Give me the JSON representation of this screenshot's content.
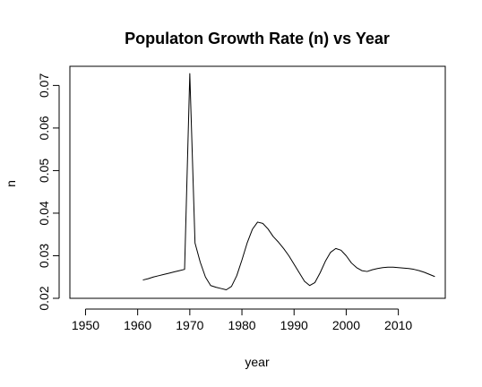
{
  "chart_data": {
    "type": "line",
    "title": "Populaton Growth Rate (n) vs Year",
    "xlabel": "year",
    "ylabel": "n",
    "xlim": [
      1947,
      2019
    ],
    "ylim": [
      0.02,
      0.0745
    ],
    "x_ticks": [
      1950,
      1960,
      1970,
      1980,
      1990,
      2000,
      2010
    ],
    "y_ticks": [
      0.02,
      0.03,
      0.04,
      0.05,
      0.06,
      0.07
    ],
    "x_tick_labels": [
      "1950",
      "1960",
      "1970",
      "1980",
      "1990",
      "2000",
      "2010"
    ],
    "y_tick_labels": [
      "0.02",
      "0.03",
      "0.04",
      "0.05",
      "0.06",
      "0.07"
    ],
    "grid": false,
    "series": [
      {
        "color": "#000000",
        "x": [
          1961,
          1962,
          1963,
          1964,
          1965,
          1966,
          1967,
          1968,
          1969,
          1970,
          1971,
          1972,
          1973,
          1974,
          1975,
          1976,
          1977,
          1978,
          1979,
          1980,
          1981,
          1982,
          1983,
          1984,
          1985,
          1986,
          1987,
          1988,
          1989,
          1990,
          1991,
          1992,
          1993,
          1994,
          1995,
          1996,
          1997,
          1998,
          1999,
          2000,
          2001,
          2002,
          2003,
          2004,
          2005,
          2006,
          2007,
          2008,
          2009,
          2010,
          2011,
          2012,
          2013,
          2014,
          2015,
          2016,
          2017
        ],
        "y": [
          0.0243,
          0.0246,
          0.025,
          0.0253,
          0.0256,
          0.0259,
          0.0262,
          0.0265,
          0.0268,
          0.0728,
          0.033,
          0.0285,
          0.025,
          0.023,
          0.0226,
          0.0223,
          0.022,
          0.0228,
          0.0253,
          0.029,
          0.033,
          0.0362,
          0.0379,
          0.0376,
          0.0363,
          0.0345,
          0.0332,
          0.0317,
          0.03,
          0.028,
          0.026,
          0.024,
          0.023,
          0.0237,
          0.026,
          0.0287,
          0.0308,
          0.0317,
          0.0313,
          0.03,
          0.0283,
          0.0272,
          0.0265,
          0.0263,
          0.0267,
          0.027,
          0.0272,
          0.0273,
          0.0273,
          0.0272,
          0.0271,
          0.027,
          0.0268,
          0.0265,
          0.0261,
          0.0256,
          0.0251
        ]
      }
    ]
  }
}
